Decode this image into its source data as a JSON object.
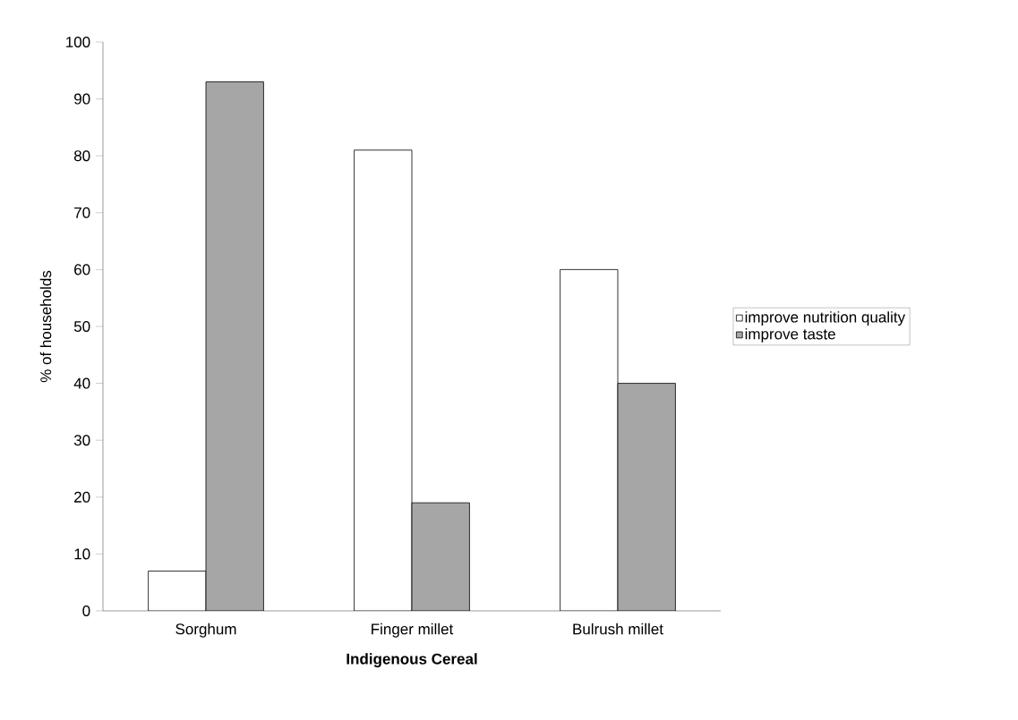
{
  "chart_data": {
    "type": "bar",
    "xlabel": "Indigenous Cereal",
    "ylabel": "% of households",
    "categories": [
      "Sorghum",
      "Finger millet",
      "Bulrush millet"
    ],
    "series": [
      {
        "name": "improve nutrition quality",
        "color": "#ffffff",
        "values": [
          7,
          81,
          60
        ]
      },
      {
        "name": "improve taste",
        "color": "#a6a6a6",
        "values": [
          93,
          19,
          40
        ]
      }
    ],
    "ylim": [
      0,
      100
    ],
    "yticks": [
      0,
      10,
      20,
      30,
      40,
      50,
      60,
      70,
      80,
      90,
      100
    ],
    "grid": false,
    "legend": "right"
  }
}
